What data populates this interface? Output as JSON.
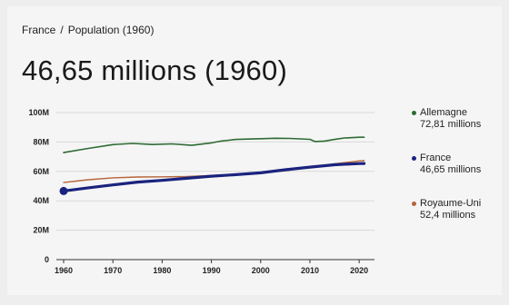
{
  "breadcrumb": {
    "country": "France",
    "separator": "/",
    "metric": "Population (1960)"
  },
  "headline": "46,65 millions (1960)",
  "colors": {
    "Allemagne": "#2e6b35",
    "France": "#1a237e",
    "Royaume-Uni": "#b5653a",
    "grid": "#d9d9d9",
    "axis": "#333333"
  },
  "legend": [
    {
      "name": "Allemagne",
      "value": "72,81 millions",
      "color": "#2e6b35"
    },
    {
      "name": "France",
      "value": "46,65 millions",
      "color": "#1a237e"
    },
    {
      "name": "Royaume-Uni",
      "value": "52,4 millions",
      "color": "#b5653a"
    }
  ],
  "chart_data": {
    "type": "line",
    "ylim": [
      0,
      100
    ],
    "xlim": [
      1960,
      2022
    ],
    "yticks": [
      0,
      20,
      40,
      60,
      80,
      100
    ],
    "ytick_labels": [
      "0",
      "20M",
      "40M",
      "60M",
      "80M",
      "100M"
    ],
    "xticks": [
      1960,
      1970,
      1980,
      1990,
      2000,
      2010,
      2020
    ],
    "grid": true,
    "legend_position": "right",
    "highlight": {
      "series": "France",
      "x": 1960,
      "y": 46.65
    },
    "series": [
      {
        "name": "Allemagne",
        "points": [
          [
            1960,
            72.8
          ],
          [
            1965,
            75.6
          ],
          [
            1970,
            78.2
          ],
          [
            1974,
            79.0
          ],
          [
            1978,
            78.3
          ],
          [
            1982,
            78.7
          ],
          [
            1986,
            77.7
          ],
          [
            1990,
            79.4
          ],
          [
            1992,
            80.6
          ],
          [
            1995,
            81.7
          ],
          [
            2000,
            82.2
          ],
          [
            2003,
            82.5
          ],
          [
            2006,
            82.4
          ],
          [
            2010,
            81.8
          ],
          [
            2011,
            80.3
          ],
          [
            2013,
            80.6
          ],
          [
            2015,
            81.7
          ],
          [
            2017,
            82.7
          ],
          [
            2020,
            83.2
          ],
          [
            2021,
            83.2
          ]
        ]
      },
      {
        "name": "France",
        "points": [
          [
            1960,
            46.65
          ],
          [
            1965,
            48.8
          ],
          [
            1970,
            50.8
          ],
          [
            1975,
            52.7
          ],
          [
            1980,
            53.9
          ],
          [
            1985,
            55.3
          ],
          [
            1990,
            56.7
          ],
          [
            1995,
            57.8
          ],
          [
            2000,
            59.0
          ],
          [
            2005,
            61.1
          ],
          [
            2010,
            62.9
          ],
          [
            2015,
            64.5
          ],
          [
            2020,
            65.3
          ],
          [
            2021,
            65.4
          ]
        ]
      },
      {
        "name": "Royaume-Uni",
        "points": [
          [
            1960,
            52.4
          ],
          [
            1965,
            54.3
          ],
          [
            1970,
            55.6
          ],
          [
            1975,
            56.2
          ],
          [
            1980,
            56.3
          ],
          [
            1985,
            56.5
          ],
          [
            1990,
            57.2
          ],
          [
            1995,
            58.0
          ],
          [
            2000,
            58.9
          ],
          [
            2005,
            60.4
          ],
          [
            2010,
            62.8
          ],
          [
            2015,
            65.1
          ],
          [
            2020,
            67.1
          ],
          [
            2021,
            67.3
          ]
        ]
      }
    ]
  }
}
